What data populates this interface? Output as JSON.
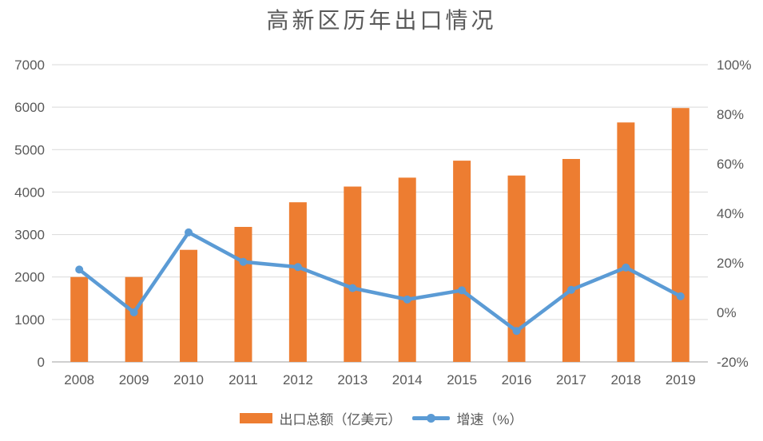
{
  "chart_data": {
    "type": "combo-bar-line",
    "title": "高新区历年出口情况",
    "categories": [
      "2008",
      "2009",
      "2010",
      "2011",
      "2012",
      "2013",
      "2014",
      "2015",
      "2016",
      "2017",
      "2018",
      "2019"
    ],
    "series": [
      {
        "name": "出口总额（亿美元）",
        "type": "bar",
        "axis": "left",
        "color": "#ED7D31",
        "values": [
          2000,
          2000,
          2640,
          3180,
          3760,
          4130,
          4340,
          4740,
          4390,
          4780,
          5640,
          5980
        ]
      },
      {
        "name": "增速（%）",
        "type": "line",
        "axis": "right",
        "color": "#5B9BD5",
        "values": [
          17.3,
          0,
          32.3,
          20.4,
          18.3,
          9.8,
          5.2,
          8.9,
          -7.5,
          9.1,
          18.1,
          6.5
        ]
      }
    ],
    "left_axis": {
      "min": 0,
      "max": 7000,
      "step": 1000,
      "tick_labels_top_to_bottom": [
        "7000",
        "6000",
        "5000",
        "4000",
        "3000",
        "2000",
        "1000",
        "0"
      ]
    },
    "right_axis": {
      "min": -20,
      "max": 100,
      "step": 20,
      "tick_labels_top_to_bottom": [
        "100%",
        "80%",
        "60%",
        "40%",
        "20%",
        "0%",
        "-20%"
      ]
    },
    "grid": true,
    "legend_position": "bottom",
    "colors": {
      "bar": "#ED7D31",
      "line": "#5B9BD5",
      "gridline": "#D9D9D9",
      "axis_line": "#BFBFBF",
      "text": "#595959",
      "background": "#FFFFFF"
    }
  }
}
